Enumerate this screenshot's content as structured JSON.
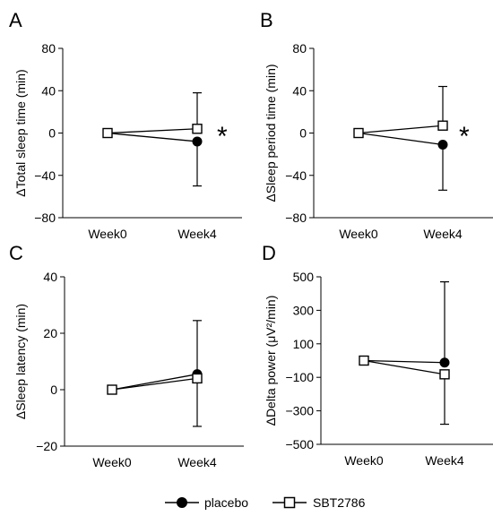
{
  "legend": {
    "series": [
      {
        "name": "placebo",
        "marker": "filled-circle"
      },
      {
        "name": "SBT2786",
        "marker": "open-square"
      }
    ]
  },
  "chart_data": [
    {
      "panel": "A",
      "type": "line",
      "categories": [
        "Week0",
        "Week4"
      ],
      "ylabel": "ΔTotal sleep time (min)",
      "ylim": [
        -80,
        80
      ],
      "yticks": [
        80,
        40,
        0,
        -40,
        -80
      ],
      "ytick_labels": [
        "80",
        "40",
        "0",
        "−40",
        "−80"
      ],
      "annotation": "*",
      "series": [
        {
          "name": "placebo",
          "values": [
            0,
            -8
          ],
          "error_upper": [
            0,
            0
          ],
          "error_lower": [
            0,
            42
          ]
        },
        {
          "name": "SBT2786",
          "values": [
            0,
            4
          ],
          "error_upper": [
            0,
            34
          ],
          "error_lower": [
            0,
            0
          ]
        }
      ]
    },
    {
      "panel": "B",
      "type": "line",
      "categories": [
        "Week0",
        "Week4"
      ],
      "ylabel": "ΔSleep period time (min)",
      "ylim": [
        -80,
        80
      ],
      "yticks": [
        80,
        40,
        0,
        -40,
        -80
      ],
      "ytick_labels": [
        "80",
        "40",
        "0",
        "−40",
        "−80"
      ],
      "annotation": "*",
      "series": [
        {
          "name": "placebo",
          "values": [
            0,
            -11
          ],
          "error_upper": [
            0,
            0
          ],
          "error_lower": [
            0,
            43
          ]
        },
        {
          "name": "SBT2786",
          "values": [
            0,
            7
          ],
          "error_upper": [
            0,
            37
          ],
          "error_lower": [
            0,
            0
          ]
        }
      ]
    },
    {
      "panel": "C",
      "type": "line",
      "categories": [
        "Week0",
        "Week4"
      ],
      "ylabel": "ΔSleep latency (min)",
      "ylim": [
        -20,
        40
      ],
      "yticks": [
        40,
        20,
        0,
        -20
      ],
      "ytick_labels": [
        "40",
        "20",
        "0",
        "−20"
      ],
      "annotation": "",
      "series": [
        {
          "name": "placebo",
          "values": [
            0,
            5.5
          ],
          "error_upper": [
            0,
            19
          ],
          "error_lower": [
            0,
            0
          ]
        },
        {
          "name": "SBT2786",
          "values": [
            0,
            4
          ],
          "error_upper": [
            0,
            0
          ],
          "error_lower": [
            0,
            17
          ]
        }
      ]
    },
    {
      "panel": "D",
      "type": "line",
      "categories": [
        "Week0",
        "Week4"
      ],
      "ylabel": "ΔDelta power (μV²/min)",
      "ylim": [
        -500,
        500
      ],
      "yticks": [
        500,
        300,
        100,
        -100,
        -300,
        -500
      ],
      "ytick_labels": [
        "500",
        "300",
        "100",
        "−100",
        "−300",
        "−500"
      ],
      "annotation": "",
      "series": [
        {
          "name": "placebo",
          "values": [
            0,
            -12
          ],
          "error_upper": [
            0,
            482
          ],
          "error_lower": [
            0,
            0
          ]
        },
        {
          "name": "SBT2786",
          "values": [
            0,
            -82
          ],
          "error_upper": [
            0,
            0
          ],
          "error_lower": [
            0,
            298
          ]
        }
      ]
    }
  ]
}
